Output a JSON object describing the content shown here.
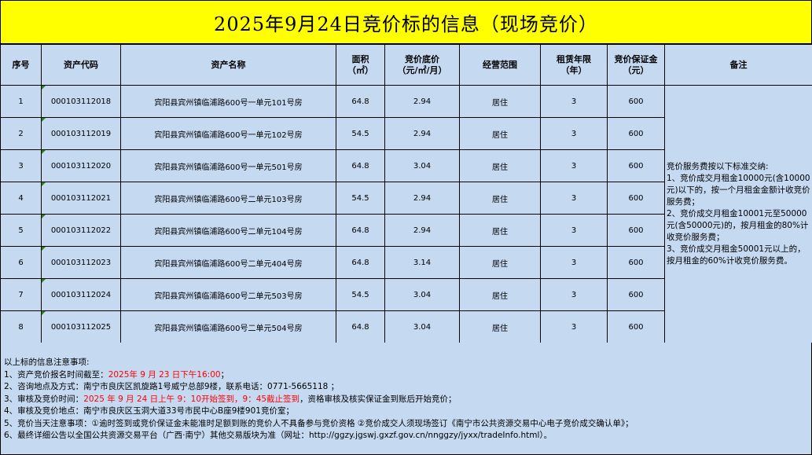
{
  "title": "2025年9月24日竞价标的信息（现场竞价）",
  "headers": [
    "序号",
    "资产代码",
    "资产名称",
    "面积\n（㎡）",
    "竞价底价\n（元/㎡/月）",
    "经营范围",
    "租赁年限\n（年）",
    "竞价保证金\n（元）",
    "备注"
  ],
  "rows": [
    [
      "1",
      "000103112018",
      "宾阳县宾州镇临浦路600号一单元101号房",
      "64.8",
      "2.94",
      "居住",
      "3",
      "600"
    ],
    [
      "2",
      "000103112019",
      "宾阳县宾州镇临浦路600号一单元102号房",
      "54.5",
      "2.94",
      "居住",
      "3",
      "600"
    ],
    [
      "3",
      "000103112020",
      "宾阳县宾州镇临浦路600号一单元501号房",
      "64.8",
      "3.04",
      "居住",
      "3",
      "600"
    ],
    [
      "4",
      "000103112021",
      "宾阳县宾州镇临浦路600号二单元103号房",
      "54.5",
      "2.94",
      "居住",
      "3",
      "600"
    ],
    [
      "5",
      "000103112022",
      "宾阳县宾州镇临浦路600号二单元104号房",
      "64.8",
      "2.94",
      "居住",
      "3",
      "600"
    ],
    [
      "6",
      "000103112023",
      "宾阳县宾州镇临浦路600号二单元404号房",
      "64.8",
      "3.14",
      "居住",
      "3",
      "600"
    ],
    [
      "7",
      "000103112024",
      "宾阳县宾州镇临浦路600号二单元503号房",
      "54.5",
      "3.04",
      "居住",
      "3",
      "600"
    ],
    [
      "8",
      "000103112025",
      "宾阳县宾州镇临浦路600号二单元504号房",
      "64.8",
      "3.04",
      "居住",
      "3",
      "600"
    ]
  ],
  "remark": "竞价服务费按以下标准交纳:\n1、竞价成交月租金10000元(含10000元)以下的，按一个月租金金额计收竞价服务费；\n2、竞价成交月租金10001元至50000元(含50000元)的，按月租金的80%计收竞价服务费；\n3、竞价成交月租金50001元以上的，按月租金的60%计收竞价服务费。",
  "notes": {
    "heading": "以上标的信息注意事项:",
    "n1_label": "1、资产竞价报名时间截至：",
    "n1_red": "2025年 9 月 23 日下午16:00",
    "n1_end": "；",
    "n2": "2、咨询地点及方式：南宁市良庆区凯旋路1号威宁总部9楼，联系电话：0771-5665118 ；",
    "n3_label": "3、审核及竞价时间：",
    "n3_red": "2025 年 9 月 24 日上午 9：10开始签到，9：45截止签到",
    "n3_end": "，资格审核及核实保证金到账后开始竞价；",
    "n4": "4、审核及竞价地点：南宁市良庆区玉洞大道33号市民中心B座9楼901竞价室；",
    "n5": "5、竞价当天注意事项：①逾时签到或竞价保证金未能准时足额到账的竞价人不具备参与竞价资格 ②竞价成交人须现场签订《南宁市公共资源交易中心电子竞价成交确认单》；",
    "n6": "6、最终详细公告以全国公共资源交易平台（广西·南宁）其他交易版块为准（网址：http://ggzy.jgswj.gxzf.gov.cn/nnggzy/jyxx/tradeInfo.html）。"
  }
}
